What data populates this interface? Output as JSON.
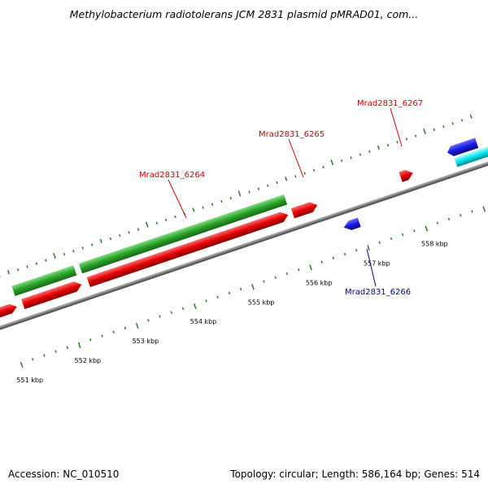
{
  "title": "Methylobacterium radiotolerans JCM 2831 plasmid pMRAD01, com...",
  "footer": {
    "accession": "Accession: NC_010510",
    "summary": "Topology: circular; Length: 586,164 bp; Genes: 514"
  },
  "colors": {
    "forward_gene": "#e00000",
    "reverse_gene": "#1a1ae0",
    "other_strand_green": "#2aa02a",
    "cyan_feature": "#00e5ee",
    "tick": "#2a7a2a",
    "backbone": "#808080",
    "forward_label": "#cc0000",
    "reverse_label": "#00009a"
  },
  "gene_labels": [
    {
      "name": "Mrad2831_6264",
      "strand": "forward"
    },
    {
      "name": "Mrad2831_6265",
      "strand": "forward"
    },
    {
      "name": "Mrad2831_6267",
      "strand": "forward"
    },
    {
      "name": "Mrad2831_6266",
      "strand": "reverse"
    }
  ],
  "kbp_labels": [
    "551 kbp",
    "552 kbp",
    "553 kbp",
    "554 kbp",
    "555 kbp",
    "556 kbp",
    "557 kbp",
    "558 kbp"
  ]
}
